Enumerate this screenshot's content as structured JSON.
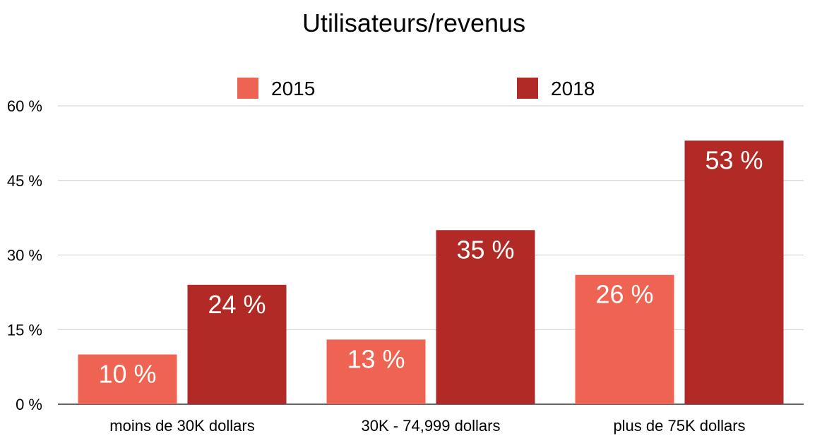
{
  "chart_data": {
    "type": "bar",
    "title": "Utilisateurs/revenus",
    "xlabel": "",
    "ylabel": "",
    "categories": [
      "moins de 30K dollars",
      "30K - 74,999 dollars",
      "plus de 75K dollars"
    ],
    "series": [
      {
        "name": "2015",
        "values": [
          10,
          13,
          26
        ],
        "labels": [
          "10 %",
          "13 %",
          "26 %"
        ],
        "color": "#ee6352"
      },
      {
        "name": "2018",
        "values": [
          24,
          35,
          53
        ],
        "labels": [
          "24 %",
          "35 %",
          "53 %"
        ],
        "color": "#b22a26"
      }
    ],
    "ylim": [
      0,
      60
    ],
    "yticks": [
      0,
      15,
      30,
      45,
      60
    ],
    "ytick_labels": [
      "0 %",
      "15 %",
      "30 %",
      "45 %",
      "60 %"
    ],
    "grid": true,
    "legend_position": "top"
  }
}
